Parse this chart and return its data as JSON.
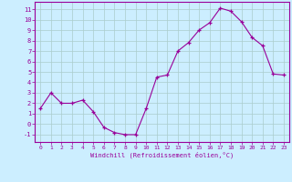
{
  "x": [
    0,
    1,
    2,
    3,
    4,
    5,
    6,
    7,
    8,
    9,
    10,
    11,
    12,
    13,
    14,
    15,
    16,
    17,
    18,
    19,
    20,
    21,
    22,
    23
  ],
  "y": [
    1.5,
    3.0,
    2.0,
    2.0,
    2.3,
    1.2,
    -0.3,
    -0.8,
    -1.0,
    -1.0,
    1.5,
    4.5,
    4.7,
    7.0,
    7.8,
    9.0,
    9.7,
    11.1,
    10.8,
    9.8,
    8.3,
    7.5,
    4.8,
    4.7
  ],
  "line_color": "#990099",
  "marker": "+",
  "marker_size": 3,
  "bg_color": "#cceeff",
  "grid_color": "#aacccc",
  "xlabel": "Windchill (Refroidissement éolien,°C)",
  "xlabel_color": "#990099",
  "tick_color": "#990099",
  "ylabel_ticks": [
    -1,
    0,
    1,
    2,
    3,
    4,
    5,
    6,
    7,
    8,
    9,
    10,
    11
  ],
  "xlim": [
    -0.5,
    23.5
  ],
  "ylim": [
    -1.7,
    11.7
  ]
}
